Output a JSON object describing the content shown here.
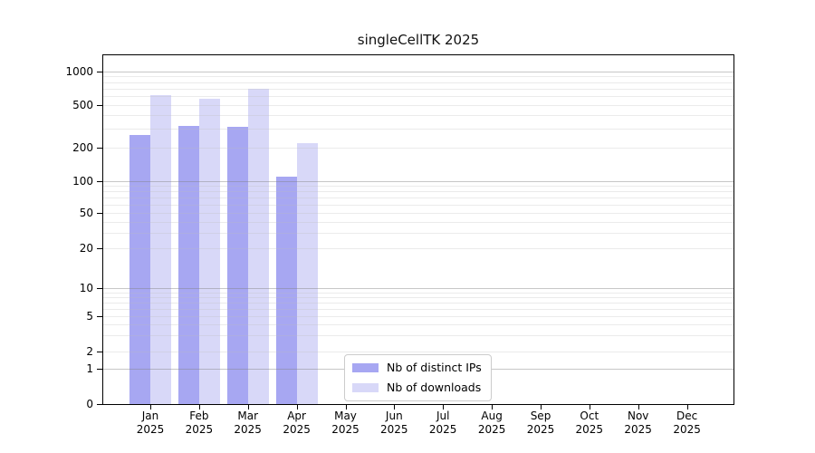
{
  "title": "singleCellTK 2025",
  "chart_data": {
    "type": "bar",
    "title": "singleCellTK 2025",
    "categories": [
      "Jan",
      "Feb",
      "Mar",
      "Apr",
      "May",
      "Jun",
      "Jul",
      "Aug",
      "Sep",
      "Oct",
      "Nov",
      "Dec"
    ],
    "x_tick_year": "2025",
    "series": [
      {
        "name": "Nb of distinct IPs",
        "color": "#a7a7f2",
        "values": [
          265,
          318,
          315,
          110,
          null,
          null,
          null,
          null,
          null,
          null,
          null,
          null
        ]
      },
      {
        "name": "Nb of downloads",
        "color": "#d8d8f8",
        "values": [
          610,
          565,
          700,
          220,
          null,
          null,
          null,
          null,
          null,
          null,
          null,
          null
        ]
      }
    ],
    "y_ticks": [
      0,
      1,
      2,
      5,
      10,
      20,
      50,
      100,
      200,
      500,
      1000
    ],
    "y_scale": "log-like with 0 baseline",
    "ylim": [
      0,
      1400
    ],
    "grid": "major gridlines at 1,10,100,1000; faint minor gridlines at 2-9 per decade",
    "legend_position": "inside plot, lower center-left",
    "xlabel": "",
    "ylabel": ""
  }
}
